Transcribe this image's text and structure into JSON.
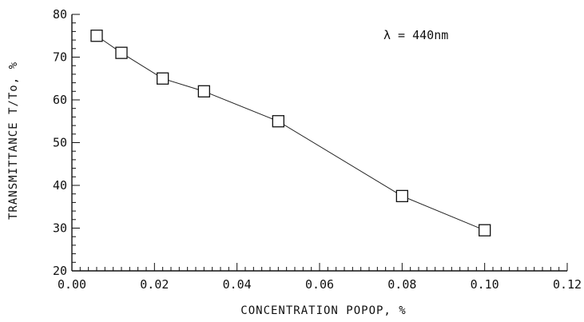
{
  "chart_data": {
    "type": "line",
    "title": "",
    "xlabel": "CONCENTRATION POPOP, %",
    "ylabel": "TRANSMITTANCE T/To, %",
    "annotation": "λ = 440nm",
    "xlim": [
      0.0,
      0.12
    ],
    "ylim": [
      20,
      80
    ],
    "x_ticks": [
      "0.00",
      "0.02",
      "0.04",
      "0.06",
      "0.08",
      "0.10",
      "0.12"
    ],
    "y_ticks": [
      "20",
      "30",
      "40",
      "50",
      "60",
      "70",
      "80"
    ],
    "grid": false,
    "marker": "open-square",
    "series": [
      {
        "x": [
          0.006,
          0.012,
          0.022,
          0.032,
          0.05,
          0.08,
          0.1
        ],
        "y": [
          75,
          71,
          65,
          62,
          55,
          37.5,
          29.5
        ]
      }
    ]
  }
}
